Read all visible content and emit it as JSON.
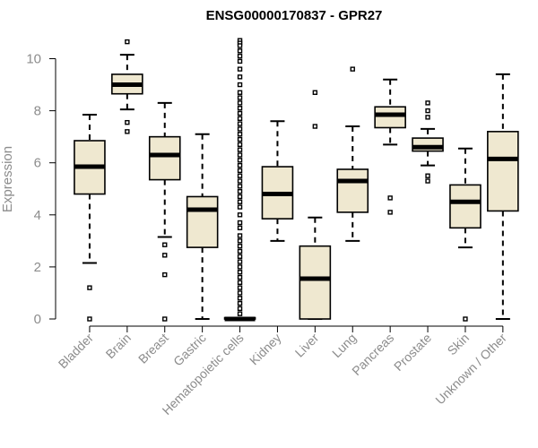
{
  "chart_data": {
    "type": "box",
    "title": "ENSG00000170837 - GPR27",
    "xlabel": "",
    "ylabel": "Expression",
    "ylim": [
      0,
      10.8
    ],
    "yticks": [
      0,
      2,
      4,
      6,
      8,
      10
    ],
    "colors": {
      "box_fill": "#efe8d0",
      "stroke": "#000000",
      "axis_text": "#8c8c8c"
    },
    "categories": [
      "Bladder",
      "Brain",
      "Breast",
      "Gastric",
      "Hematopoietic cells",
      "Kidney",
      "Liver",
      "Lung",
      "Pancreas",
      "Prostate",
      "Skin",
      "Unknown / Other"
    ],
    "boxes": [
      {
        "q1": 4.8,
        "median": 5.85,
        "q3": 6.85,
        "wlo": 2.15,
        "whi": 7.85,
        "outliers": [
          1.2,
          0.0
        ]
      },
      {
        "q1": 8.65,
        "median": 9.0,
        "q3": 9.4,
        "wlo": 8.05,
        "whi": 10.15,
        "outliers": [
          10.65,
          7.55,
          7.2
        ]
      },
      {
        "q1": 5.35,
        "median": 6.3,
        "q3": 7.0,
        "wlo": 3.15,
        "whi": 8.3,
        "outliers": [
          2.85,
          2.45,
          1.7,
          0.0
        ]
      },
      {
        "q1": 2.75,
        "median": 4.2,
        "q3": 4.7,
        "wlo": 0.0,
        "whi": 7.1,
        "outliers": []
      },
      {
        "q1": 0.0,
        "median": 0.0,
        "q3": 0.05,
        "wlo": 0.0,
        "whi": 0.0,
        "outliers": [
          10.7,
          10.6,
          10.5,
          10.3,
          10.1,
          9.9,
          9.6,
          9.3,
          9.0,
          8.7,
          8.5,
          8.3,
          8.1,
          7.9,
          7.7,
          7.5,
          7.3,
          7.1,
          6.9,
          6.7,
          6.5,
          6.3,
          6.1,
          5.9,
          5.7,
          5.5,
          5.3,
          5.1,
          4.9,
          4.7,
          4.5,
          4.3,
          4.0,
          3.7,
          3.5,
          3.2,
          3.0,
          2.8,
          2.6,
          2.4,
          2.2,
          2.0,
          1.8,
          1.6,
          1.4,
          1.2,
          1.0,
          0.8,
          0.6,
          0.4,
          0.2
        ]
      },
      {
        "q1": 3.85,
        "median": 4.8,
        "q3": 5.85,
        "wlo": 3.0,
        "whi": 7.6,
        "outliers": []
      },
      {
        "q1": 0.0,
        "median": 1.55,
        "q3": 2.8,
        "wlo": 0.0,
        "whi": 3.9,
        "outliers": [
          8.7,
          7.4
        ]
      },
      {
        "q1": 4.1,
        "median": 5.3,
        "q3": 5.75,
        "wlo": 3.0,
        "whi": 7.4,
        "outliers": [
          9.6
        ]
      },
      {
        "q1": 7.35,
        "median": 7.85,
        "q3": 8.15,
        "wlo": 6.7,
        "whi": 9.2,
        "outliers": [
          4.65,
          4.1
        ]
      },
      {
        "q1": 6.45,
        "median": 6.6,
        "q3": 6.95,
        "wlo": 5.9,
        "whi": 7.3,
        "outliers": [
          8.3,
          8.0,
          7.75,
          5.5,
          5.3
        ]
      },
      {
        "q1": 3.5,
        "median": 4.5,
        "q3": 5.15,
        "wlo": 2.75,
        "whi": 6.55,
        "outliers": [
          0.0
        ]
      },
      {
        "q1": 4.15,
        "median": 6.15,
        "q3": 7.2,
        "wlo": 0.0,
        "whi": 9.4,
        "outliers": []
      }
    ]
  }
}
